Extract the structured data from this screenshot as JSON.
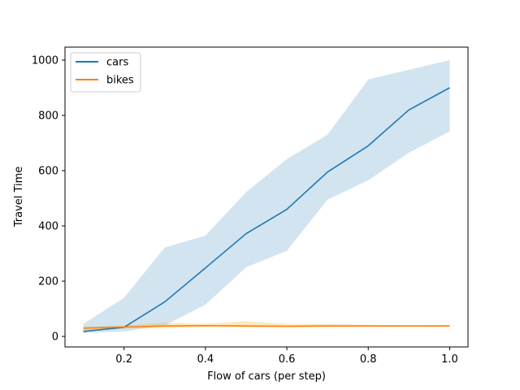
{
  "chart_data": {
    "type": "line",
    "xlabel": "Flow of cars (per step)",
    "ylabel": "Travel Time",
    "xlim": [
      0.055,
      1.045
    ],
    "ylim": [
      -38,
      1047
    ],
    "x_ticks": [
      0.2,
      0.4,
      0.6,
      0.8,
      1.0
    ],
    "x_tick_labels": [
      "0.2",
      "0.4",
      "0.6",
      "0.8",
      "1.0"
    ],
    "y_ticks": [
      0,
      200,
      400,
      600,
      800,
      1000
    ],
    "y_tick_labels": [
      "0",
      "200",
      "400",
      "600",
      "800",
      "1000"
    ],
    "grid": false,
    "legend_position": "top-left",
    "x": [
      0.1,
      0.2,
      0.3,
      0.4,
      0.5,
      0.6,
      0.7,
      0.8,
      0.9,
      1.0
    ],
    "series": [
      {
        "name": "cars",
        "color": "#1f77b4",
        "band_color": "#1f77b4",
        "values": [
          18,
          33,
          125,
          248,
          372,
          460,
          595,
          690,
          820,
          900
        ],
        "lower": [
          12,
          18,
          40,
          115,
          250,
          310,
          495,
          565,
          665,
          742
        ],
        "upper": [
          45,
          140,
          322,
          365,
          522,
          642,
          730,
          930,
          965,
          1000
        ]
      },
      {
        "name": "bikes",
        "color": "#ff7f0e",
        "band_color": "#ffa500",
        "values": [
          30,
          34,
          38,
          39,
          38,
          37,
          38,
          38,
          38,
          38
        ],
        "lower": [
          20,
          28,
          30,
          34,
          33,
          32,
          34,
          35,
          35,
          35
        ],
        "upper": [
          36,
          40,
          50,
          46,
          55,
          45,
          45,
          42,
          41,
          42
        ]
      }
    ]
  }
}
